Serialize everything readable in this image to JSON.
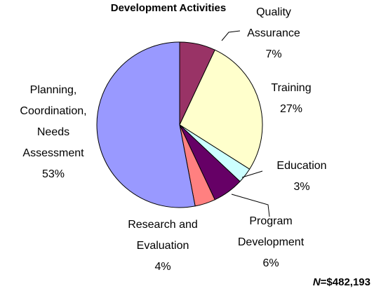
{
  "chart_data": {
    "type": "pie",
    "title": "Development Activities",
    "categories": [
      "Quality\nAssurance",
      "Training",
      "Education",
      "Program\nDevelopment",
      "Research and\nEvaluation",
      "Planning,\nCoordination,\nNeeds\nAssessment"
    ],
    "values": [
      7,
      27,
      3,
      6,
      4,
      53
    ],
    "value_labels": [
      "7%",
      "27%",
      "3%",
      "6%",
      "4%",
      "53%"
    ],
    "colors": [
      "#993366",
      "#FFFFCC",
      "#CCFFFF",
      "#660066",
      "#FF8080",
      "#9999FF"
    ],
    "footnote": {
      "italic": "N",
      "text": "=$482,193"
    }
  }
}
